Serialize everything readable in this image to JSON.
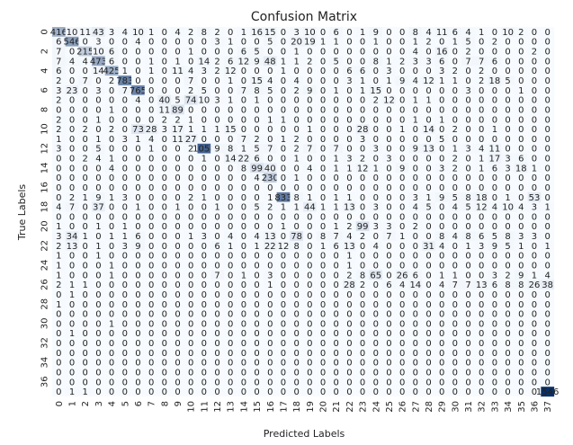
{
  "chart_data": {
    "type": "heatmap",
    "title": "Confusion Matrix",
    "xlabel": "Predicted Labels",
    "ylabel": "True Labels",
    "x_ticks": [
      "0",
      "1",
      "2",
      "3",
      "4",
      "5",
      "6",
      "7",
      "8",
      "9",
      "10",
      "11",
      "12",
      "13",
      "14",
      "15",
      "16",
      "17",
      "18",
      "19",
      "20",
      "21",
      "22",
      "23",
      "24",
      "25",
      "26",
      "27",
      "28",
      "29",
      "30",
      "31",
      "32",
      "33",
      "34",
      "35",
      "36",
      "37"
    ],
    "y_ticks": [
      "0",
      "2",
      "4",
      "6",
      "8",
      "10",
      "12",
      "14",
      "16",
      "18",
      "20",
      "22",
      "24",
      "26",
      "28",
      "30",
      "32",
      "34",
      "36"
    ],
    "cmap": [
      "#f7fbff",
      "#08306b"
    ],
    "annotate_threshold": 700,
    "rows": [
      [
        416,
        10,
        11,
        43,
        3,
        4,
        10,
        1,
        0,
        4,
        2,
        8,
        2,
        0,
        1,
        16,
        15,
        0,
        3,
        10,
        0,
        6,
        0,
        1,
        9,
        0,
        0,
        8,
        4,
        11,
        6,
        4,
        1,
        0,
        10,
        2,
        0,
        0
      ],
      [
        6,
        546,
        0,
        3,
        0,
        0,
        4,
        0,
        0,
        0,
        0,
        0,
        3,
        1,
        0,
        0,
        5,
        0,
        20,
        19,
        1,
        1,
        0,
        0,
        1,
        0,
        0,
        1,
        2,
        0,
        1,
        5,
        0,
        2,
        0,
        0,
        0,
        0
      ],
      [
        7,
        0,
        215,
        10,
        6,
        0,
        0,
        0,
        0,
        0,
        1,
        0,
        0,
        0,
        6,
        5,
        0,
        0,
        1,
        0,
        0,
        0,
        0,
        0,
        0,
        0,
        0,
        4,
        0,
        16,
        0,
        2,
        0,
        0,
        0,
        0,
        2,
        0
      ],
      [
        7,
        4,
        4,
        473,
        6,
        0,
        0,
        1,
        0,
        1,
        0,
        14,
        2,
        6,
        12,
        9,
        48,
        1,
        1,
        2,
        0,
        5,
        0,
        0,
        8,
        1,
        2,
        3,
        3,
        6,
        0,
        7,
        7,
        6,
        0,
        0,
        0,
        0
      ],
      [
        6,
        0,
        0,
        14,
        425,
        1,
        0,
        1,
        0,
        11,
        4,
        3,
        2,
        12,
        0,
        0,
        0,
        1,
        0,
        0,
        0,
        0,
        6,
        6,
        0,
        3,
        0,
        0,
        0,
        3,
        2,
        0,
        2,
        0,
        0,
        0,
        0,
        0
      ],
      [
        2,
        0,
        7,
        0,
        2,
        783,
        0,
        0,
        0,
        0,
        7,
        0,
        0,
        1,
        0,
        15,
        4,
        0,
        4,
        0,
        0,
        0,
        3,
        1,
        0,
        1,
        9,
        4,
        12,
        1,
        1,
        0,
        2,
        18,
        5,
        0,
        0,
        0
      ],
      [
        3,
        23,
        0,
        3,
        0,
        7,
        765,
        0,
        0,
        0,
        2,
        5,
        0,
        0,
        7,
        8,
        5,
        0,
        2,
        9,
        0,
        1,
        0,
        1,
        15,
        0,
        0,
        0,
        0,
        0,
        0,
        3,
        0,
        0,
        0,
        1,
        0,
        0
      ],
      [
        2,
        0,
        0,
        0,
        0,
        0,
        4,
        0,
        40,
        5,
        74,
        10,
        3,
        1,
        0,
        1,
        0,
        0,
        0,
        0,
        0,
        0,
        0,
        0,
        2,
        12,
        0,
        1,
        1,
        0,
        0,
        0,
        0,
        0,
        0,
        0,
        0,
        0
      ],
      [
        0,
        0,
        0,
        0,
        1,
        0,
        0,
        0,
        11,
        89,
        0,
        0,
        0,
        0,
        0,
        0,
        0,
        0,
        0,
        0,
        0,
        0,
        0,
        0,
        0,
        0,
        0,
        0,
        0,
        0,
        0,
        0,
        0,
        0,
        0,
        0,
        0,
        0
      ],
      [
        2,
        0,
        0,
        1,
        0,
        0,
        0,
        0,
        2,
        2,
        1,
        0,
        0,
        0,
        0,
        0,
        1,
        1,
        0,
        0,
        0,
        0,
        0,
        0,
        0,
        0,
        0,
        1,
        0,
        1,
        0,
        0,
        0,
        0,
        0,
        0,
        0,
        0
      ],
      [
        2,
        0,
        2,
        0,
        2,
        0,
        73,
        28,
        3,
        17,
        1,
        1,
        1,
        15,
        0,
        0,
        0,
        0,
        0,
        1,
        0,
        0,
        0,
        28,
        0,
        0,
        1,
        0,
        14,
        0,
        2,
        0,
        0,
        1,
        0,
        0,
        0,
        0
      ],
      [
        1,
        0,
        0,
        1,
        0,
        3,
        1,
        4,
        0,
        11,
        27,
        0,
        0,
        0,
        7,
        2,
        0,
        1,
        2,
        0,
        0,
        0,
        0,
        3,
        0,
        0,
        0,
        0,
        0,
        5,
        0,
        0,
        0,
        0,
        0,
        0,
        0,
        0
      ],
      [
        3,
        0,
        0,
        5,
        0,
        0,
        0,
        1,
        0,
        0,
        2,
        1058,
        9,
        8,
        1,
        5,
        7,
        0,
        2,
        7,
        0,
        7,
        0,
        0,
        3,
        0,
        0,
        9,
        13,
        0,
        1,
        3,
        4,
        11,
        0,
        0,
        0,
        0
      ],
      [
        0,
        0,
        2,
        4,
        1,
        0,
        0,
        0,
        0,
        0,
        0,
        1,
        0,
        14,
        22,
        6,
        0,
        0,
        1,
        0,
        0,
        1,
        3,
        2,
        0,
        3,
        0,
        0,
        0,
        0,
        2,
        0,
        1,
        17,
        3,
        6,
        0,
        0
      ],
      [
        0,
        0,
        0,
        0,
        4,
        0,
        0,
        0,
        0,
        0,
        0,
        0,
        0,
        0,
        8,
        99,
        40,
        0,
        0,
        4,
        0,
        1,
        1,
        12,
        1,
        0,
        9,
        0,
        0,
        3,
        2,
        0,
        1,
        6,
        3,
        18,
        1,
        0
      ],
      [
        0,
        0,
        0,
        0,
        0,
        0,
        0,
        0,
        0,
        0,
        0,
        0,
        0,
        0,
        0,
        4,
        230,
        0,
        1,
        0,
        0,
        0,
        0,
        0,
        0,
        0,
        0,
        0,
        0,
        0,
        0,
        0,
        0,
        0,
        0,
        0,
        0,
        0
      ],
      [
        0,
        0,
        0,
        0,
        0,
        0,
        0,
        0,
        0,
        0,
        0,
        0,
        0,
        0,
        0,
        0,
        0,
        0,
        0,
        0,
        0,
        0,
        0,
        0,
        0,
        0,
        0,
        0,
        0,
        0,
        0,
        0,
        0,
        0,
        0,
        0,
        0,
        0
      ],
      [
        0,
        2,
        1,
        9,
        1,
        3,
        0,
        0,
        0,
        0,
        2,
        1,
        0,
        0,
        0,
        0,
        1,
        833,
        8,
        1,
        0,
        1,
        1,
        0,
        0,
        0,
        0,
        3,
        1,
        9,
        5,
        8,
        18,
        0,
        1,
        0,
        53,
        0
      ],
      [
        4,
        7,
        0,
        37,
        0,
        0,
        1,
        0,
        0,
        1,
        0,
        0,
        1,
        0,
        0,
        5,
        2,
        1,
        1,
        44,
        1,
        1,
        13,
        0,
        3,
        0,
        0,
        4,
        5,
        0,
        4,
        5,
        12,
        4,
        10,
        4,
        3,
        1
      ],
      [
        0,
        0,
        0,
        0,
        0,
        0,
        0,
        0,
        0,
        0,
        0,
        0,
        0,
        0,
        0,
        0,
        0,
        0,
        0,
        0,
        0,
        0,
        0,
        0,
        0,
        0,
        0,
        0,
        0,
        0,
        0,
        0,
        0,
        0,
        0,
        0,
        0,
        0
      ],
      [
        1,
        0,
        0,
        1,
        0,
        1,
        0,
        0,
        0,
        0,
        0,
        0,
        0,
        0,
        0,
        0,
        0,
        1,
        0,
        0,
        0,
        1,
        2,
        99,
        3,
        3,
        0,
        2,
        0,
        0,
        0,
        0,
        0,
        0,
        0,
        0,
        0,
        0
      ],
      [
        3,
        34,
        1,
        0,
        1,
        1,
        6,
        0,
        0,
        0,
        1,
        3,
        0,
        4,
        0,
        4,
        13,
        0,
        78,
        0,
        8,
        7,
        4,
        2,
        0,
        7,
        1,
        0,
        0,
        8,
        4,
        8,
        6,
        5,
        8,
        3,
        3,
        0
      ],
      [
        2,
        13,
        0,
        1,
        0,
        3,
        9,
        0,
        0,
        0,
        0,
        0,
        6,
        1,
        0,
        1,
        22,
        12,
        8,
        0,
        1,
        6,
        13,
        0,
        4,
        0,
        0,
        0,
        31,
        4,
        0,
        1,
        3,
        9,
        5,
        1,
        0,
        1
      ],
      [
        1,
        0,
        0,
        1,
        0,
        0,
        0,
        0,
        0,
        0,
        0,
        0,
        0,
        0,
        0,
        0,
        0,
        0,
        0,
        0,
        0,
        0,
        1,
        0,
        0,
        0,
        0,
        0,
        0,
        0,
        0,
        0,
        0,
        0,
        0,
        0,
        0,
        0
      ],
      [
        1,
        0,
        0,
        0,
        1,
        0,
        0,
        0,
        0,
        0,
        0,
        0,
        0,
        0,
        0,
        0,
        0,
        0,
        0,
        0,
        0,
        0,
        1,
        0,
        0,
        0,
        0,
        0,
        0,
        0,
        0,
        0,
        0,
        0,
        0,
        0,
        0,
        0
      ],
      [
        1,
        0,
        0,
        0,
        1,
        0,
        0,
        0,
        0,
        0,
        0,
        0,
        7,
        0,
        1,
        0,
        3,
        0,
        0,
        0,
        0,
        0,
        2,
        8,
        65,
        0,
        26,
        6,
        0,
        1,
        1,
        0,
        0,
        3,
        2,
        9,
        1,
        4
      ],
      [
        2,
        1,
        1,
        0,
        0,
        0,
        0,
        0,
        0,
        0,
        0,
        0,
        0,
        0,
        0,
        0,
        1,
        0,
        0,
        0,
        0,
        0,
        28,
        2,
        0,
        6,
        4,
        14,
        0,
        4,
        7,
        7,
        13,
        6,
        8,
        8,
        26,
        38
      ],
      [
        0,
        1,
        0,
        0,
        0,
        0,
        0,
        0,
        0,
        0,
        0,
        0,
        0,
        0,
        0,
        0,
        0,
        0,
        0,
        0,
        0,
        0,
        0,
        0,
        0,
        0,
        0,
        0,
        0,
        0,
        0,
        0,
        0,
        0,
        0,
        0,
        0,
        0
      ],
      [
        1,
        0,
        0,
        0,
        0,
        0,
        0,
        0,
        0,
        0,
        0,
        0,
        0,
        0,
        0,
        0,
        0,
        0,
        0,
        0,
        0,
        0,
        0,
        0,
        0,
        0,
        0,
        0,
        0,
        0,
        0,
        0,
        0,
        0,
        0,
        0,
        0,
        0
      ],
      [
        0,
        0,
        0,
        0,
        0,
        0,
        0,
        0,
        0,
        0,
        0,
        0,
        0,
        0,
        0,
        0,
        0,
        0,
        0,
        0,
        0,
        0,
        0,
        0,
        0,
        0,
        0,
        0,
        0,
        0,
        0,
        0,
        0,
        0,
        0,
        0,
        0,
        0
      ],
      [
        0,
        0,
        0,
        0,
        1,
        0,
        0,
        0,
        0,
        0,
        0,
        0,
        0,
        0,
        0,
        0,
        0,
        0,
        0,
        0,
        0,
        0,
        0,
        0,
        0,
        0,
        0,
        0,
        0,
        0,
        0,
        0,
        0,
        0,
        0,
        0,
        0,
        0
      ],
      [
        0,
        1,
        0,
        0,
        0,
        0,
        0,
        0,
        0,
        0,
        0,
        0,
        0,
        0,
        0,
        0,
        0,
        0,
        0,
        0,
        0,
        0,
        0,
        0,
        0,
        0,
        0,
        0,
        0,
        0,
        0,
        0,
        0,
        0,
        0,
        0,
        0,
        0
      ],
      [
        0,
        0,
        0,
        0,
        0,
        0,
        0,
        0,
        0,
        0,
        0,
        0,
        0,
        0,
        0,
        0,
        0,
        0,
        0,
        0,
        0,
        0,
        0,
        0,
        0,
        0,
        0,
        0,
        0,
        0,
        0,
        0,
        0,
        0,
        0,
        0,
        0,
        0
      ],
      [
        0,
        0,
        0,
        0,
        0,
        0,
        0,
        0,
        0,
        0,
        0,
        0,
        0,
        0,
        0,
        0,
        0,
        0,
        0,
        0,
        0,
        0,
        0,
        0,
        0,
        0,
        0,
        0,
        0,
        0,
        0,
        0,
        0,
        0,
        0,
        0,
        0,
        0
      ],
      [
        0,
        0,
        0,
        0,
        0,
        0,
        0,
        0,
        0,
        0,
        0,
        0,
        0,
        0,
        0,
        0,
        0,
        0,
        0,
        0,
        0,
        0,
        0,
        0,
        0,
        0,
        0,
        0,
        0,
        0,
        0,
        0,
        0,
        0,
        0,
        0,
        0,
        0
      ],
      [
        0,
        0,
        0,
        0,
        0,
        0,
        0,
        0,
        0,
        0,
        0,
        0,
        0,
        0,
        0,
        0,
        0,
        0,
        0,
        0,
        0,
        0,
        0,
        0,
        0,
        0,
        0,
        0,
        0,
        0,
        0,
        0,
        0,
        0,
        0,
        0,
        0,
        0
      ],
      [
        0,
        0,
        0,
        0,
        0,
        0,
        0,
        0,
        0,
        0,
        0,
        0,
        0,
        0,
        0,
        0,
        0,
        0,
        0,
        0,
        0,
        0,
        0,
        0,
        0,
        0,
        0,
        0,
        0,
        0,
        0,
        0,
        0,
        0,
        0,
        0,
        0,
        0
      ],
      [
        0,
        1,
        1,
        0,
        0,
        0,
        0,
        0,
        0,
        0,
        0,
        0,
        0,
        0,
        0,
        0,
        0,
        0,
        0,
        0,
        0,
        0,
        0,
        0,
        0,
        0,
        0,
        0,
        0,
        0,
        0,
        0,
        0,
        0,
        0,
        0,
        0,
        1546
      ]
    ]
  }
}
